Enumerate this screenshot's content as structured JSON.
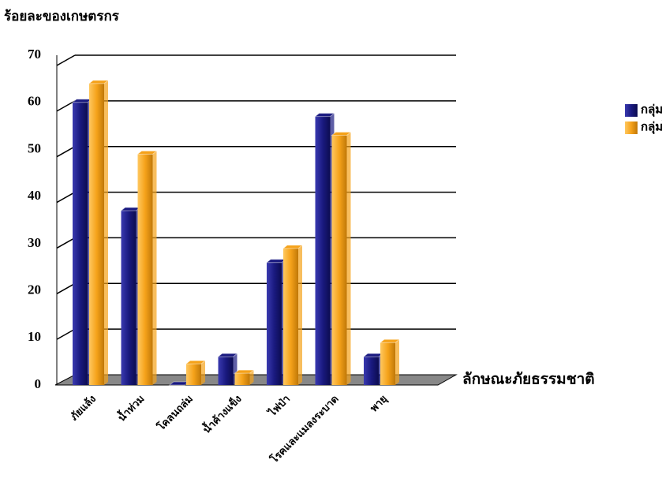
{
  "chart_data": {
    "type": "bar3d",
    "y_label": "ร้อยละของเกษตรกร",
    "x_label": "ลักษณะภัยธรรมชาติ",
    "categories": [
      "ภัยแล้ง",
      "น้ำท่วม",
      "โคลนถล่ม",
      "น้ำค้างแข็ง",
      "ไฟป่า",
      "โรคและแมลงระบาด",
      "พายุ"
    ],
    "series": [
      {
        "name": "กลุ่มชอบความเสี่ยง",
        "color": "#1a1a80",
        "values": [
          60,
          37,
          0,
          6,
          26,
          57,
          6
        ]
      },
      {
        "name": "กลุ่มไม่ชอบความเสี่ยง",
        "color": "#f5a21a",
        "values": [
          64,
          49,
          4.5,
          2.5,
          29,
          53,
          9
        ]
      }
    ],
    "ylim": [
      0,
      70
    ],
    "yticks": [
      0,
      10,
      20,
      30,
      40,
      50,
      60,
      70
    ],
    "grid": true
  }
}
